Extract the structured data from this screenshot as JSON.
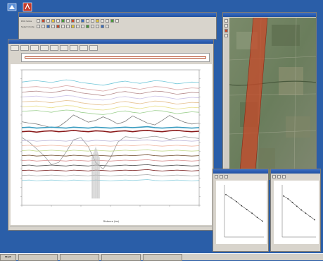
{
  "colors": {
    "desktop": "#2a5ea8",
    "window": "#d8d4cc",
    "titlebar": "#1f4fa0",
    "highlight": "#c84a2a",
    "plot_bg": "#ffffff"
  },
  "icons": [
    "app-logo-icon",
    "red-app-icon"
  ],
  "desktop": {
    "icons": [
      "app-logo-icon",
      "red-app-icon"
    ]
  },
  "toolbar": {
    "row1_label": "Plot mode",
    "row2_label": "Select mode"
  },
  "main_window": {
    "tabs": [
      "",
      "",
      "",
      "",
      "",
      "",
      "",
      "",
      ""
    ],
    "status_left": "",
    "status_right": ""
  },
  "map_window": {
    "title": ""
  },
  "small_windows": [
    {
      "title": ""
    },
    {
      "title": ""
    }
  ],
  "taskbar": {
    "start_label": "Start",
    "items": [
      "",
      "",
      "",
      ""
    ],
    "clock": ""
  },
  "chart_data": {
    "type": "line",
    "title": "",
    "xlabel": "Distance (km)",
    "ylabel": "",
    "ylim": [
      0,
      30
    ],
    "x": [
      0,
      1,
      2,
      3,
      4,
      5,
      6,
      7,
      8,
      9,
      10,
      11,
      12,
      13,
      14,
      15,
      16,
      17,
      18,
      19,
      20,
      21,
      22,
      23,
      24
    ],
    "series": [
      {
        "color": "#6fc6d8",
        "values": [
          27.3,
          27.5,
          27.6,
          27.4,
          27.2,
          27.5,
          27.8,
          27.6,
          27.2,
          27.0,
          26.8,
          26.6,
          26.9,
          27.3,
          27.5,
          27.2,
          27.0,
          27.3,
          27.6,
          27.5,
          27.2,
          26.9,
          27.1,
          27.3,
          27.2
        ]
      },
      {
        "color": "#d9a6a6",
        "values": [
          26.0,
          26.2,
          26.3,
          26.1,
          25.9,
          26.2,
          26.5,
          26.3,
          25.9,
          25.7,
          25.5,
          25.3,
          25.6,
          26.0,
          26.2,
          25.9,
          25.7,
          26.0,
          26.3,
          26.2,
          25.9,
          25.6,
          25.8,
          26.0,
          25.9
        ]
      },
      {
        "color": "#b48a8a",
        "values": [
          25.0,
          25.2,
          25.3,
          25.1,
          24.9,
          25.2,
          25.5,
          25.3,
          24.9,
          24.7,
          24.5,
          24.3,
          24.6,
          25.0,
          25.2,
          24.9,
          24.7,
          25.0,
          25.3,
          25.2,
          24.9,
          24.6,
          24.8,
          25.0,
          24.9
        ]
      },
      {
        "color": "#c9c1e6",
        "values": [
          24.0,
          24.1,
          24.2,
          24.0,
          23.8,
          24.1,
          24.3,
          24.2,
          23.8,
          23.6,
          23.4,
          23.3,
          23.5,
          23.9,
          24.1,
          23.8,
          23.6,
          23.9,
          24.2,
          24.1,
          23.8,
          23.5,
          23.7,
          23.9,
          23.8
        ]
      },
      {
        "color": "#e5c08e",
        "values": [
          22.9,
          23.0,
          23.1,
          22.9,
          22.7,
          23.0,
          23.2,
          23.1,
          22.7,
          22.5,
          22.3,
          22.2,
          22.4,
          22.8,
          23.0,
          22.7,
          22.5,
          22.8,
          23.1,
          23.0,
          22.7,
          22.4,
          22.6,
          22.8,
          22.7
        ]
      },
      {
        "color": "#e8df8a",
        "values": [
          21.8,
          21.9,
          22.0,
          21.8,
          21.6,
          21.9,
          22.1,
          22.0,
          21.6,
          21.4,
          21.2,
          21.1,
          21.3,
          21.7,
          21.9,
          21.6,
          21.4,
          21.7,
          22.0,
          21.9,
          21.6,
          21.3,
          21.5,
          21.7,
          21.6
        ]
      },
      {
        "color": "#9ccf8e",
        "values": [
          20.8,
          20.9,
          21.0,
          20.8,
          20.6,
          20.9,
          21.1,
          21.0,
          20.6,
          20.4,
          20.2,
          20.1,
          20.3,
          20.7,
          20.9,
          20.6,
          20.4,
          20.7,
          21.0,
          20.9,
          20.6,
          20.3,
          20.5,
          20.7,
          20.6
        ]
      },
      {
        "color": "#7e7e7e",
        "values": [
          18.5,
          18.2,
          18.0,
          17.6,
          17.2,
          17.4,
          18.6,
          20.0,
          19.2,
          18.4,
          18.8,
          19.6,
          18.9,
          18.0,
          18.6,
          19.8,
          19.0,
          18.2,
          17.8,
          18.8,
          19.9,
          19.1,
          18.4,
          18.0,
          18.2
        ]
      },
      {
        "color": "#8a1a1a",
        "values": [
          16.3,
          16.4,
          16.2,
          16.4,
          16.5,
          16.3,
          16.4,
          16.6,
          16.4,
          16.3,
          16.5,
          16.4,
          16.2,
          16.4,
          16.5,
          16.3,
          16.5,
          16.6,
          16.4,
          16.3,
          16.5,
          16.6,
          16.4,
          16.3,
          16.4
        ]
      },
      {
        "color": "#3a9cc0",
        "values": [
          17.2,
          17.3,
          17.1,
          17.2,
          17.3,
          17.2,
          17.1,
          17.3,
          17.2,
          17.1,
          17.3,
          17.2,
          17.1,
          17.2,
          17.3,
          17.2,
          17.3,
          17.4,
          17.2,
          17.1,
          17.2,
          17.3,
          17.2,
          17.1,
          17.2
        ]
      },
      {
        "color": "#9a9a9a",
        "values": [
          15.0,
          14.0,
          12.5,
          11.0,
          9.0,
          9.5,
          11.8,
          14.5,
          15.0,
          13.0,
          9.5,
          8.0,
          10.5,
          14.0,
          15.2,
          15.0,
          14.8,
          15.1,
          15.3,
          15.0,
          14.6,
          14.9,
          15.2,
          15.0,
          14.8
        ]
      },
      {
        "color": "#b7b0d4",
        "values": [
          14.3,
          14.4,
          14.2,
          14.3,
          14.4,
          14.3,
          14.2,
          14.4,
          14.3,
          14.2,
          14.4,
          14.3,
          14.2,
          14.3,
          14.4,
          14.3,
          14.4,
          14.5,
          14.3,
          14.2,
          14.3,
          14.4,
          14.3,
          14.2,
          14.3
        ]
      },
      {
        "color": "#f0b7a0",
        "values": [
          13.2,
          13.3,
          13.1,
          13.2,
          13.3,
          13.2,
          13.1,
          13.3,
          13.2,
          13.1,
          13.3,
          13.2,
          13.1,
          13.2,
          13.3,
          13.2,
          13.3,
          13.4,
          13.2,
          13.1,
          13.2,
          13.3,
          13.2,
          13.1,
          13.2
        ]
      },
      {
        "color": "#c2d88a",
        "values": [
          12.1,
          12.2,
          12.0,
          12.1,
          12.2,
          12.1,
          12.0,
          12.2,
          12.1,
          12.0,
          12.2,
          12.1,
          12.0,
          12.1,
          12.2,
          12.1,
          12.2,
          12.3,
          12.1,
          12.0,
          12.1,
          12.2,
          12.1,
          12.0,
          12.1
        ]
      },
      {
        "color": "#6e4a2a",
        "values": [
          11.0,
          11.1,
          10.9,
          11.0,
          11.1,
          11.0,
          10.9,
          11.1,
          11.0,
          10.9,
          11.1,
          11.0,
          10.9,
          11.0,
          11.1,
          11.0,
          11.1,
          11.2,
          11.0,
          10.9,
          11.0,
          11.1,
          11.0,
          10.9,
          11.0
        ]
      },
      {
        "color": "#d58a8a",
        "values": [
          9.9,
          10.0,
          9.8,
          9.9,
          10.0,
          9.9,
          9.8,
          10.0,
          9.9,
          9.8,
          10.0,
          9.9,
          9.8,
          9.9,
          10.0,
          9.9,
          10.0,
          10.1,
          9.9,
          9.8,
          9.9,
          10.0,
          9.9,
          9.8,
          9.9
        ]
      },
      {
        "color": "#505050",
        "values": [
          8.8,
          8.9,
          8.7,
          8.8,
          8.9,
          8.8,
          8.7,
          8.9,
          8.8,
          8.7,
          8.9,
          8.8,
          8.7,
          8.8,
          8.9,
          8.8,
          8.9,
          9.0,
          8.8,
          8.7,
          8.8,
          8.9,
          8.8,
          8.7,
          8.8
        ]
      },
      {
        "color": "#7a1e1e",
        "values": [
          7.7,
          7.8,
          7.6,
          7.7,
          7.8,
          7.7,
          7.6,
          7.8,
          7.7,
          7.6,
          7.8,
          7.7,
          7.6,
          7.7,
          7.8,
          7.7,
          7.8,
          7.9,
          7.7,
          7.6,
          7.7,
          7.8,
          7.7,
          7.6,
          7.7
        ]
      },
      {
        "color": "#a9a9a9",
        "values": [
          6.6,
          6.7,
          6.5,
          6.6,
          6.7,
          6.6,
          6.5,
          6.7,
          6.6,
          6.5,
          6.7,
          6.6,
          6.5,
          6.6,
          6.7,
          6.6,
          6.7,
          6.8,
          6.6,
          6.5,
          6.6,
          6.7,
          6.6,
          6.5,
          6.6
        ]
      },
      {
        "color": "#8fd0df",
        "values": [
          5.5,
          5.6,
          5.4,
          5.5,
          5.6,
          5.5,
          5.4,
          5.6,
          5.5,
          5.4,
          5.6,
          5.5,
          5.4,
          5.5,
          5.6,
          5.5,
          5.6,
          5.7,
          5.5,
          5.4,
          5.5,
          5.6,
          5.5,
          5.4,
          5.5
        ]
      }
    ]
  },
  "small_charts": [
    {
      "type": "scatter",
      "x": [
        1,
        2,
        3,
        4,
        5,
        6,
        7,
        8
      ],
      "y": [
        8.5,
        7.8,
        7.0,
        6.1,
        5.3,
        4.5,
        3.6,
        2.8
      ]
    },
    {
      "type": "scatter",
      "x": [
        1,
        2,
        3,
        4,
        5,
        6,
        7,
        8
      ],
      "y": [
        8.2,
        7.6,
        6.8,
        6.0,
        5.2,
        4.5,
        3.8,
        3.1
      ]
    }
  ]
}
